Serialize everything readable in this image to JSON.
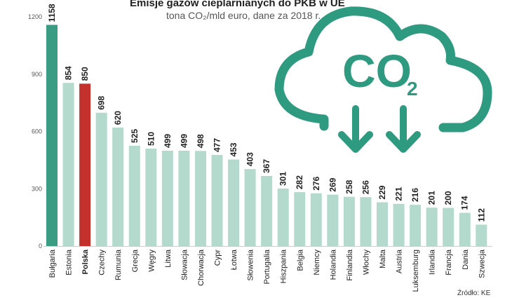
{
  "chart_data": {
    "type": "bar",
    "title": "Emisje gazów cieplarnianych do PKB w UE",
    "subtitle": "tona CO₂/mld euro, dane za 2018 r.",
    "source": "Źródło: KE",
    "ylim": [
      0,
      1200
    ],
    "yticks": [
      0,
      300,
      600,
      900,
      1200
    ],
    "categories": [
      "Bułgaria",
      "Estonia",
      "Polska",
      "Czechy",
      "Rumunia",
      "Grecja",
      "Węgry",
      "Litwa",
      "Słowacja",
      "Chorwacja",
      "Cypr",
      "Łotwa",
      "Słowenia",
      "Portugalia",
      "Hiszpania",
      "Belgia",
      "Niemcy",
      "Holandia",
      "Finlandia",
      "Włochy",
      "Malta",
      "Austria",
      "Luksemburg",
      "Irlandia",
      "Francja",
      "Dania",
      "Szwecja"
    ],
    "values": [
      1158,
      854,
      850,
      698,
      620,
      525,
      510,
      499,
      499,
      498,
      477,
      453,
      403,
      367,
      301,
      282,
      276,
      269,
      258,
      256,
      229,
      221,
      216,
      201,
      200,
      174,
      112
    ],
    "highlighted": [
      "Bułgaria",
      "Polska"
    ],
    "colors": {
      "default_bar": "#b3dacc",
      "bulgaria_bar": "#3a9c82",
      "poland_bar": "#c4302b",
      "cloud": "#2e9a80",
      "text": "#222222",
      "axis": "#555555"
    },
    "graphic": {
      "cloud_label": "CO",
      "cloud_subscript": "2",
      "icon": "co2-cloud-icon"
    }
  }
}
